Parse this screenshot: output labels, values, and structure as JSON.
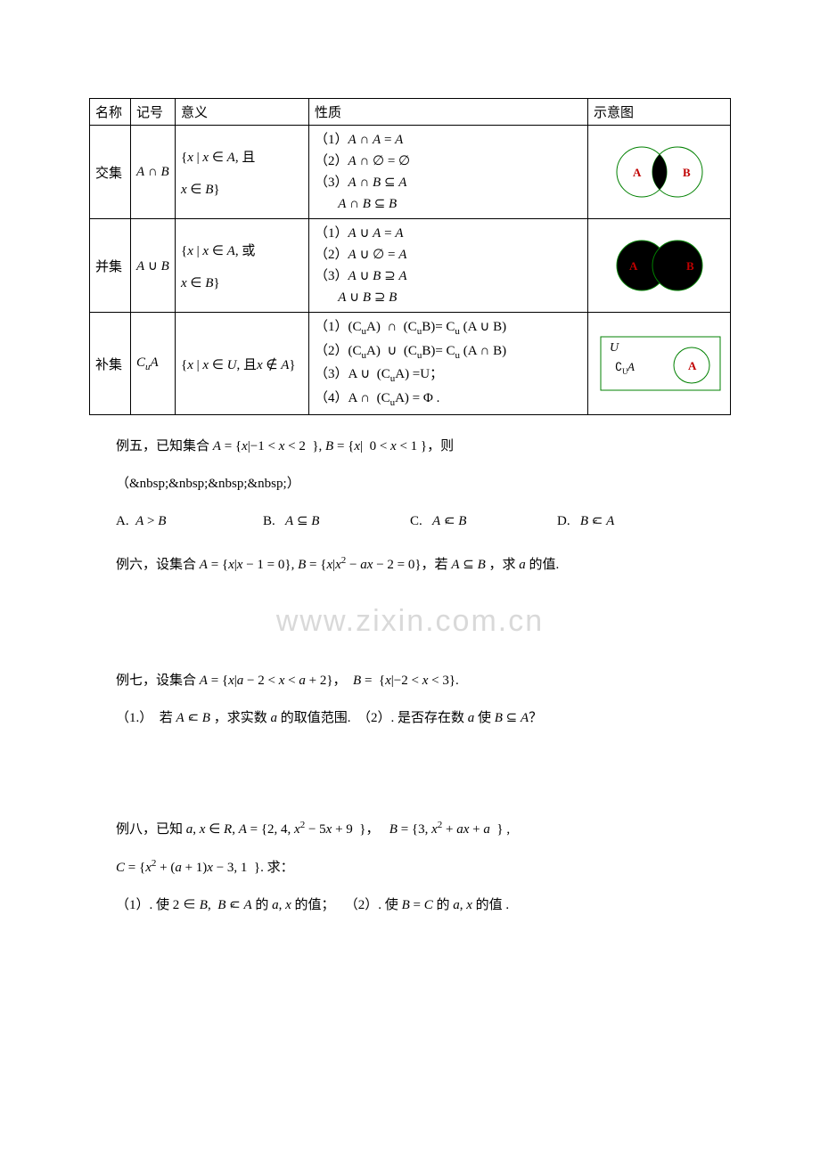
{
  "table": {
    "headers": [
      "名称",
      "记号",
      "意义",
      "性质",
      "示意图"
    ],
    "rows": [
      {
        "name": "交集",
        "symbol_html": "<span class='math-i'>A</span> ∩ <span class='math-i'>B</span>",
        "meaning_html": "{<span class='math-i'>x</span> | <span class='math-i'>x</span> ∈ <span class='math-i'>A</span>, 且<br><br><span class='math-i'>x</span> ∈ <span class='math-i'>B</span>}",
        "props_html": "（1）<span class='math-i'>A</span> ∩ <span class='math-i'>A</span> = <span class='math-i'>A</span><br>（2）<span class='math-i'>A</span> ∩ ∅ = ∅<br>（3）<span class='math-i'>A</span> ∩ <span class='math-i'>B</span> ⊆ <span class='math-i'>A</span><br>&nbsp;&nbsp;&nbsp;&nbsp;&nbsp;&nbsp;&nbsp;<span class='math-i'>A</span> ∩ <span class='math-i'>B</span> ⊆ <span class='math-i'>B</span>",
        "diagram": "intersection"
      },
      {
        "name": "并集",
        "symbol_html": "<span class='math-i'>A</span> ∪ <span class='math-i'>B</span>",
        "meaning_html": "{<span class='math-i'>x</span> | <span class='math-i'>x</span> ∈ <span class='math-i'>A</span>, 或<br><br><span class='math-i'>x</span> ∈ <span class='math-i'>B</span>}",
        "props_html": "（1）<span class='math-i'>A</span> ∪ <span class='math-i'>A</span> = <span class='math-i'>A</span><br>（2）<span class='math-i'>A</span> ∪ ∅ = <span class='math-i'>A</span><br>（3）<span class='math-i'>A</span> ∪ <span class='math-i'>B</span> ⊇ <span class='math-i'>A</span><br>&nbsp;&nbsp;&nbsp;&nbsp;&nbsp;&nbsp;&nbsp;<span class='math-i'>A</span> ∪ <span class='math-i'>B</span> ⊇ <span class='math-i'>B</span>",
        "diagram": "union"
      },
      {
        "name": "补集",
        "symbol_html": "<span class='math-i'>C<span class='sub'>u</span>A</span>",
        "meaning_html": "{<span class='math-i'>x</span> | <span class='math-i'>x</span> ∈ <span class='math-i'>U</span>, 且<span class='math-i'>x</span> ∉ <span class='math-i'>A</span>}",
        "props_html": "（1）(C<span class='sub'>u</span>A) &nbsp;∩&nbsp; (C<span class='sub'>u</span>B)= C<span class='sub'>u</span> (A ∪ B)<br>（2）(C<span class='sub'>u</span>A) &nbsp;∪&nbsp; (C<span class='sub'>u</span>B)= C<span class='sub'>u</span> (A ∩ B)<br>（3）A ∪ &nbsp;(C<span class='sub'>u</span>A) =U；<br>（4）A ∩ &nbsp;(C<span class='sub'>u</span>A) = Φ .",
        "diagram": "complement"
      }
    ],
    "colors": {
      "stroke": "#008000",
      "fill_black": "#000000",
      "label_A": "#c00000",
      "label_B": "#c00000",
      "bg": "#ffffff"
    }
  },
  "body": {
    "ex5_line1": "例五，已知集合 <span class='math-i'>A</span> = {<span class='math-i'>x</span>|−1 &lt; <span class='math-i'>x</span> &lt; 2 &nbsp;}, <span class='math-i'>B</span> = {<span class='math-i'>x</span>|&nbsp; 0 &lt; <span class='math-i'>x</span> &lt; 1 }，则",
    "ex5_line2": "（&nbsp;&nbsp;&nbsp;&nbsp;）",
    "optA": "A.&nbsp; <span class='math-i'>A</span> &gt; <span class='math-i'>B</span>",
    "optB": "B.&nbsp;&nbsp; <span class='math-i'>A</span> ⊆ <span class='math-i'>B</span>",
    "optC": "C.&nbsp;&nbsp; <span class='math-i'>A</span>&nbsp;<span class='subsetneq'>⊂</span>&nbsp;<span class='math-i'>B</span>",
    "optD": "D.&nbsp;&nbsp; <span class='math-i'>B</span>&nbsp;<span class='subsetneq'>⊂</span>&nbsp;<span class='math-i'>A</span>",
    "ex6": "例六，设集合 <span class='math-i'>A</span> = {<span class='math-i'>x</span>|<span class='math-i'>x</span> − 1 = 0}, <span class='math-i'>B</span> = {<span class='math-i'>x</span>|<span class='math-i'>x</span><span class='sup'>2</span> − <span class='math-i'>ax</span> − 2 = 0}，若 <span class='math-i'>A</span> ⊆ <span class='math-i'>B</span> ，求 <span class='math-i'>a</span> 的值.",
    "watermark": "www.zixin.com.cn",
    "ex7_l1": "例七，设集合 <span class='math-i'>A</span> = {<span class='math-i'>x</span>|<span class='math-i'>a</span> − 2 &lt; <span class='math-i'>x</span> &lt; <span class='math-i'>a</span> + 2}，&nbsp; <span class='math-i'>B</span> = &nbsp;{<span class='math-i'>x</span>|−2 &lt; <span class='math-i'>x</span> &lt; 3}.",
    "ex7_l2": "（1.）&nbsp; 若 <span class='math-i'>A</span>&nbsp;<span class='subsetneq'>⊂</span>&nbsp;<span class='math-i'>B</span> ，求实数 <span class='math-i'>a</span> 的取值范围. &nbsp;（2）. 是否存在数 <span class='math-i'>a</span> 使 <span class='math-i'>B</span> ⊆ <span class='math-i'>A</span>？",
    "ex8_l1": "例八，已知 <span class='math-i'>a</span>, <span class='math-i'>x</span> ∈ <span class='math-i'>R</span>, <span class='math-i'>A</span> = {2, 4, <span class='math-i'>x</span><span class='sup'>2</span> − 5<span class='math-i'>x</span> + 9 &nbsp;}，&nbsp;&nbsp; <span class='math-i'>B</span> = {3, <span class='math-i'>x</span><span class='sup'>2</span> + <span class='math-i'>ax</span> + <span class='math-i'>a</span> &nbsp;} ,",
    "ex8_l2": "<span class='math-i'>C</span> = {<span class='math-i'>x</span><span class='sup'>2</span> + (<span class='math-i'>a</span> + 1)<span class='math-i'>x</span> − 3, 1 &nbsp;}. 求：",
    "ex8_l3": "（1）. 使 2 ∈ <span class='math-i'>B</span>, &nbsp;<span class='math-i'>B</span>&nbsp;<span class='subsetneq'>⊂</span>&nbsp;<span class='math-i'>A</span> 的 <span class='math-i'>a</span>, <span class='math-i'>x</span> 的值；&nbsp;&nbsp;&nbsp;（2）. 使 <span class='math-i'>B</span> = <span class='math-i'>C</span> 的 <span class='math-i'>a</span>, <span class='math-i'>x</span> 的值 ."
  }
}
